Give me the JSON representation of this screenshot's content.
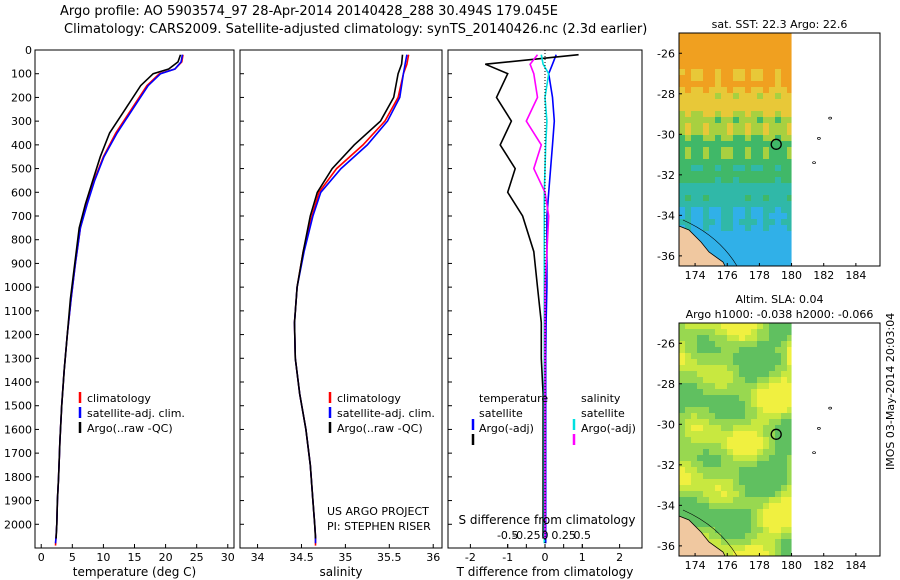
{
  "header": {
    "line1": "Argo profile: AO 5903574_97 28-Apr-2014 20140428_288 30.494S 179.045E",
    "line2": "Climatology: CARS2009. Satellite-adjusted climatology: synTS_20140426.nc (2.3d earlier)"
  },
  "stamp": "IMOS 03-May-2014 20:03:04",
  "colors": {
    "climatology": "#ff0000",
    "satellite": "#0000ff",
    "argo": "#000000",
    "sal_satellite": "#00e0e0",
    "sal_argo": "#ff00ff"
  },
  "chart_data": [
    {
      "type": "line",
      "name": "temperature",
      "xlabel": "temperature (deg C)",
      "ylabel": "",
      "xlim": [
        -1,
        31
      ],
      "ylim": [
        2100,
        0
      ],
      "xticks": [
        "0",
        "5",
        "10",
        "15",
        "20",
        "25",
        "30"
      ],
      "xtick_values": [
        0,
        5,
        10,
        15,
        20,
        25,
        30
      ],
      "yticks": [
        "0",
        "100",
        "200",
        "300",
        "400",
        "500",
        "600",
        "700",
        "800",
        "900",
        "1000",
        "1100",
        "1200",
        "1300",
        "1400",
        "1500",
        "1600",
        "1700",
        "1800",
        "1900",
        "2000"
      ],
      "legend": [
        "climatology",
        "satellite-adj. clim.",
        "Argo(..raw -QC)"
      ],
      "series": [
        {
          "name": "climatology",
          "color": "#ff0000",
          "x": [
            22.8,
            22.6,
            21.5,
            19.0,
            17.0,
            14.5,
            12.0,
            10.0,
            8.5,
            7.3,
            6.3,
            5.5,
            4.8,
            4.2,
            3.7,
            3.3,
            3.0,
            2.8,
            2.6,
            2.5,
            2.4,
            2.3
          ],
          "y": [
            20,
            50,
            80,
            100,
            150,
            250,
            350,
            450,
            550,
            650,
            750,
            900,
            1050,
            1200,
            1350,
            1500,
            1650,
            1800,
            1900,
            2000,
            2050,
            2090
          ]
        },
        {
          "name": "satellite-adj. clim.",
          "color": "#0000ff",
          "x": [
            22.7,
            22.5,
            21.5,
            19.2,
            17.2,
            14.7,
            12.2,
            10.1,
            8.6,
            7.4,
            6.3,
            5.5,
            4.8,
            4.2,
            3.7,
            3.3,
            3.0,
            2.8,
            2.6,
            2.5,
            2.4,
            2.3
          ],
          "y": [
            20,
            50,
            80,
            100,
            150,
            250,
            350,
            450,
            550,
            650,
            750,
            900,
            1050,
            1200,
            1350,
            1500,
            1650,
            1800,
            1900,
            2000,
            2050,
            2080
          ]
        },
        {
          "name": "Argo(..raw -QC)",
          "color": "#000000",
          "x": [
            22.4,
            22.0,
            20.5,
            18.0,
            16.0,
            13.5,
            11.0,
            9.5,
            8.3,
            7.1,
            6.1,
            5.4,
            4.7,
            4.2,
            3.7,
            3.3,
            3.0,
            2.8,
            2.6,
            2.5,
            2.4
          ],
          "y": [
            20,
            50,
            80,
            100,
            150,
            250,
            350,
            450,
            550,
            650,
            750,
            900,
            1050,
            1200,
            1350,
            1500,
            1650,
            1800,
            1900,
            2000,
            2060
          ]
        }
      ]
    },
    {
      "type": "line",
      "name": "salinity",
      "xlabel": "salinity",
      "ylabel": "",
      "xlim": [
        33.8,
        36.1
      ],
      "ylim": [
        2100,
        0
      ],
      "xticks": [
        "34",
        "34.5",
        "35",
        "35.5",
        "36"
      ],
      "xtick_values": [
        34,
        34.5,
        35,
        35.5,
        36
      ],
      "legend": [
        "climatology",
        "satellite-adj. clim.",
        "Argo(..raw -QC)"
      ],
      "annotation": [
        "US ARGO PROJECT",
        "PI: STEPHEN RISER"
      ],
      "series": [
        {
          "name": "climatology",
          "color": "#ff0000",
          "x": [
            35.72,
            35.7,
            35.66,
            35.6,
            35.45,
            35.2,
            34.9,
            34.7,
            34.62,
            34.52,
            34.45,
            34.42,
            34.43,
            34.48,
            34.55,
            34.6,
            34.63,
            34.65,
            34.66,
            34.66
          ],
          "y": [
            20,
            60,
            100,
            200,
            300,
            400,
            500,
            600,
            700,
            850,
            1000,
            1150,
            1300,
            1450,
            1600,
            1750,
            1900,
            2000,
            2050,
            2090
          ]
        },
        {
          "name": "satellite-adj. clim.",
          "color": "#0000ff",
          "x": [
            35.7,
            35.68,
            35.66,
            35.62,
            35.48,
            35.25,
            34.95,
            34.72,
            34.63,
            34.53,
            34.45,
            34.42,
            34.43,
            34.48,
            34.55,
            34.6,
            34.63,
            34.65,
            34.66,
            34.66
          ],
          "y": [
            20,
            60,
            100,
            200,
            300,
            400,
            500,
            600,
            700,
            850,
            1000,
            1150,
            1300,
            1450,
            1600,
            1750,
            1900,
            2000,
            2050,
            2080
          ]
        },
        {
          "name": "Argo(..raw -QC)",
          "color": "#000000",
          "x": [
            35.65,
            35.64,
            35.6,
            35.55,
            35.4,
            35.1,
            34.85,
            34.68,
            34.6,
            34.52,
            34.45,
            34.42,
            34.43,
            34.48,
            34.55,
            34.6,
            34.63,
            34.65,
            34.66
          ],
          "y": [
            20,
            60,
            100,
            200,
            300,
            400,
            500,
            600,
            700,
            850,
            1000,
            1150,
            1300,
            1450,
            1600,
            1750,
            1900,
            2000,
            2060
          ]
        }
      ]
    },
    {
      "type": "line",
      "name": "difference",
      "xlabel": "T difference from climatology",
      "xlabel2": "S difference from climatology",
      "xlim": [
        -2.6,
        2.6
      ],
      "ylim": [
        2100,
        0
      ],
      "xticks": [
        "-2",
        "-1",
        "0",
        "1",
        "2"
      ],
      "xtick_values": [
        -2,
        -1,
        0,
        1,
        2
      ],
      "xticks_top": [
        "-0.5",
        "-0.25",
        "0",
        "0.25",
        "0.5"
      ],
      "xtick_top_values": [
        -1.0,
        -0.5,
        0,
        0.5,
        1.0
      ],
      "legend_left": [
        "temperature",
        "satellite",
        "Argo(-adj)"
      ],
      "legend_right": [
        "salinity",
        "satellite",
        "Argo(-adj)"
      ],
      "series": [
        {
          "name": "temperature satellite",
          "color": "#0000ff",
          "x": [
            0.3,
            0.2,
            0.1,
            0.2,
            0.25,
            0.2,
            0.15,
            0.1,
            0.05,
            0.05,
            0.05,
            0.03,
            0.02,
            0.02,
            0.02,
            0.02,
            0.02,
            0.02
          ],
          "y": [
            20,
            60,
            100,
            200,
            300,
            400,
            500,
            600,
            700,
            850,
            1000,
            1150,
            1300,
            1450,
            1600,
            1750,
            1900,
            2080
          ]
        },
        {
          "name": "temperature Argo(-adj)",
          "color": "#000000",
          "x": [
            0.9,
            -1.6,
            -1.0,
            -1.3,
            -0.9,
            -1.2,
            -0.8,
            -1.0,
            -0.6,
            -0.3,
            -0.2,
            -0.1,
            -0.1,
            -0.05,
            -0.05,
            -0.05,
            -0.05,
            -0.05
          ],
          "y": [
            20,
            60,
            100,
            200,
            300,
            400,
            500,
            600,
            700,
            850,
            1000,
            1150,
            1300,
            1450,
            1600,
            1750,
            1900,
            2060
          ]
        },
        {
          "name": "salinity satellite",
          "color": "#00e0e0",
          "x": [
            -0.1,
            -0.05,
            0.1,
            0.0,
            0.05,
            0.02,
            0.0,
            -0.02,
            -0.02,
            -0.02,
            -0.02,
            -0.02,
            -0.02,
            -0.02,
            -0.02,
            -0.02,
            -0.02
          ],
          "y": [
            20,
            60,
            100,
            200,
            300,
            400,
            500,
            600,
            700,
            850,
            1000,
            1150,
            1300,
            1450,
            1600,
            1750,
            2080
          ]
        },
        {
          "name": "salinity Argo(-adj)",
          "color": "#ff00ff",
          "x": [
            -0.2,
            -0.4,
            -0.3,
            -0.2,
            -0.5,
            -0.1,
            -0.3,
            0.0,
            0.1,
            0.05,
            0.0,
            0.0,
            0.0,
            0.0,
            0.0,
            0.0
          ],
          "y": [
            20,
            60,
            100,
            200,
            300,
            400,
            500,
            600,
            700,
            850,
            1000,
            1150,
            1300,
            1450,
            1600,
            2060
          ]
        }
      ]
    },
    {
      "type": "heatmap",
      "name": "sst map",
      "title": "sat. SST: 22.3 Argo: 22.6",
      "xlim": [
        173,
        185.5
      ],
      "ylim": [
        -36.5,
        -25
      ],
      "xticks": [
        "174",
        "176",
        "178",
        "180",
        "182",
        "184"
      ],
      "xtick_values": [
        174,
        176,
        178,
        180,
        182,
        184
      ],
      "yticks": [
        "-26",
        "-28",
        "-30",
        "-32",
        "-34",
        "-36"
      ],
      "ytick_values": [
        -26,
        -28,
        -30,
        -32,
        -34,
        -36
      ],
      "marker": {
        "lon": 179.045,
        "lat": -30.494
      }
    },
    {
      "type": "heatmap",
      "name": "sla map",
      "title": "Altim. SLA: 0.04",
      "subtitle": "Argo h1000: -0.038 h2000: -0.066",
      "xlim": [
        173,
        185.5
      ],
      "ylim": [
        -36.5,
        -25
      ],
      "xticks": [
        "174",
        "176",
        "178",
        "180",
        "182",
        "184"
      ],
      "xtick_values": [
        174,
        176,
        178,
        180,
        182,
        184
      ],
      "yticks": [
        "-26",
        "-28",
        "-30",
        "-32",
        "-34",
        "-36"
      ],
      "ytick_values": [
        -26,
        -28,
        -30,
        -32,
        -34,
        -36
      ],
      "marker": {
        "lon": 179.045,
        "lat": -30.494
      }
    }
  ]
}
